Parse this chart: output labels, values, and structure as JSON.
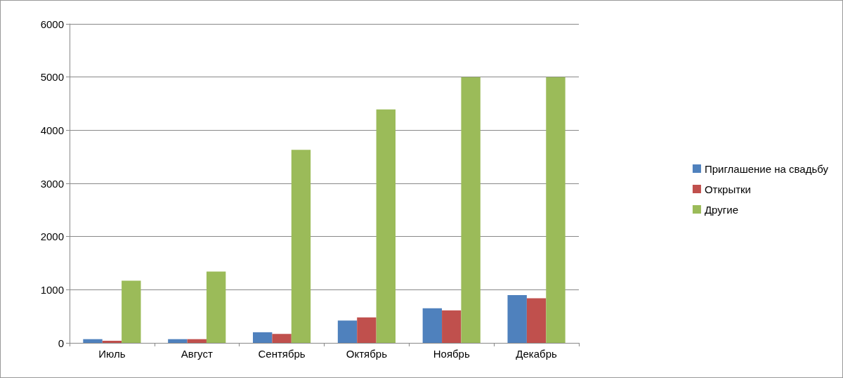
{
  "chart_data": {
    "type": "bar",
    "categories": [
      "Июль",
      "Август",
      "Сентябрь",
      "Октябрь",
      "Ноябрь",
      "Декабрь"
    ],
    "series": [
      {
        "name": "Приглашение на свадьбу",
        "color": "#4f81bd",
        "values": [
          70,
          70,
          200,
          420,
          650,
          900
        ]
      },
      {
        "name": "Открытки",
        "color": "#c0504d",
        "values": [
          40,
          70,
          170,
          480,
          610,
          840
        ]
      },
      {
        "name": "Другие",
        "color": "#9bbb59",
        "values": [
          1170,
          1340,
          3630,
          4390,
          5000,
          5000
        ]
      }
    ],
    "ylim": [
      0,
      6000
    ],
    "yticks": [
      0,
      1000,
      2000,
      3000,
      4000,
      5000,
      6000
    ],
    "grid": "y",
    "legend": "right"
  }
}
